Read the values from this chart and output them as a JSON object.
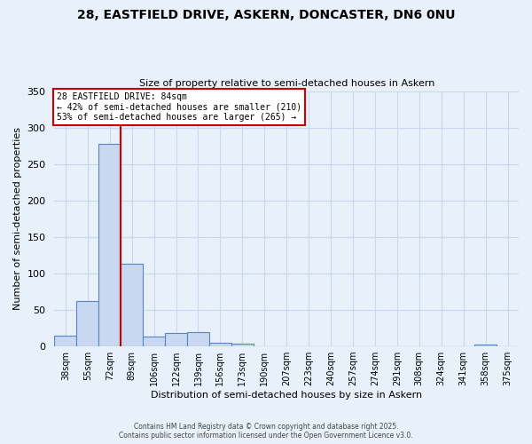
{
  "title_line1": "28, EASTFIELD DRIVE, ASKERN, DONCASTER, DN6 0NU",
  "title_line2": "Size of property relative to semi-detached houses in Askern",
  "xlabel": "Distribution of semi-detached houses by size in Askern",
  "ylabel": "Number of semi-detached properties",
  "bin_labels": [
    "38sqm",
    "55sqm",
    "72sqm",
    "89sqm",
    "106sqm",
    "122sqm",
    "139sqm",
    "156sqm",
    "173sqm",
    "190sqm",
    "207sqm",
    "223sqm",
    "240sqm",
    "257sqm",
    "274sqm",
    "291sqm",
    "308sqm",
    "324sqm",
    "341sqm",
    "358sqm",
    "375sqm"
  ],
  "bar_values": [
    15,
    62,
    278,
    113,
    13,
    18,
    20,
    5,
    4,
    0,
    0,
    0,
    0,
    0,
    0,
    0,
    0,
    0,
    0,
    2,
    0
  ],
  "bar_color": "#c8d8f0",
  "bar_edge_color": "#5585c5",
  "property_line_x": 2.5,
  "annotation_text": "28 EASTFIELD DRIVE: 84sqm\n← 42% of semi-detached houses are smaller (210)\n53% of semi-detached houses are larger (265) →",
  "annotation_box_color": "#ffffff",
  "annotation_box_edge": "#cc0000",
  "red_line_color": "#cc0000",
  "grid_color": "#c8d8ee",
  "bg_color": "#e8f0fa",
  "ylim": [
    0,
    350
  ],
  "yticks": [
    0,
    50,
    100,
    150,
    200,
    250,
    300,
    350
  ],
  "footer_line1": "Contains HM Land Registry data © Crown copyright and database right 2025.",
  "footer_line2": "Contains public sector information licensed under the Open Government Licence v3.0."
}
